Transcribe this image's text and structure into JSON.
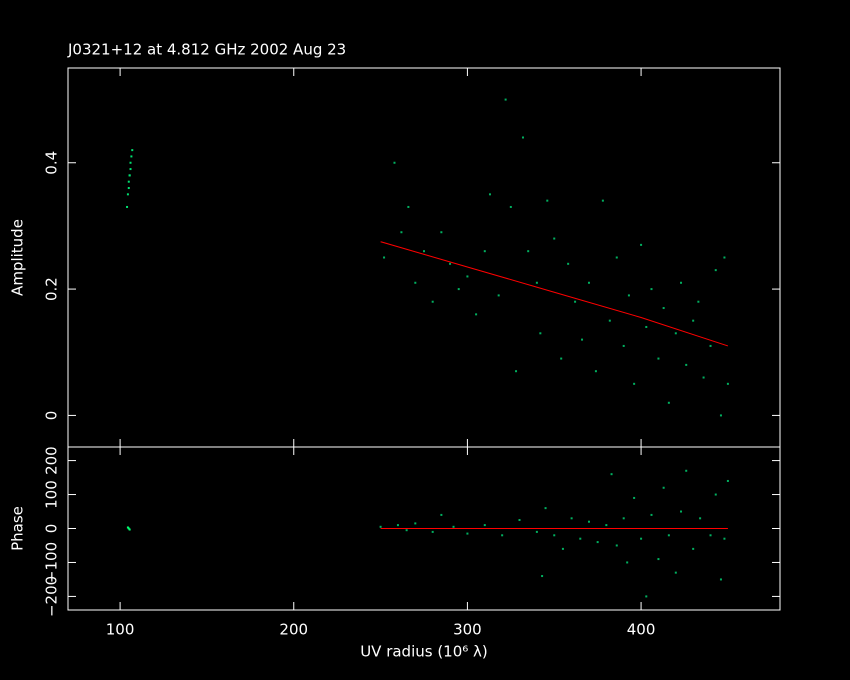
{
  "chart_data": [
    {
      "type": "scatter",
      "title": "J0321+12 at 4.812 GHz 2002 Aug 23",
      "ylabel": "Amplitude",
      "xlim": [
        70,
        480
      ],
      "ylim": [
        -0.05,
        0.55
      ],
      "yticks": [
        0,
        0.2,
        0.4
      ],
      "series": [
        {
          "color": "#00e070",
          "x": [
            104,
            104.5,
            105,
            105,
            105.5,
            105.5,
            106,
            106,
            106.5,
            107
          ],
          "values": [
            0.33,
            0.35,
            0.36,
            0.37,
            0.38,
            0.38,
            0.39,
            0.4,
            0.41,
            0.42
          ]
        },
        {
          "color": "#00b060",
          "x": [
            252,
            258,
            262,
            266,
            270,
            275,
            280,
            285,
            290,
            295,
            300,
            305,
            310,
            313,
            318,
            322,
            325,
            328,
            332,
            335,
            340,
            342,
            346,
            350,
            354,
            358,
            362,
            366,
            370,
            374,
            378,
            382,
            386,
            390,
            393,
            396,
            400,
            403,
            406,
            410,
            413,
            416,
            420,
            423,
            426,
            430,
            433,
            436,
            440,
            443,
            446,
            448,
            450
          ],
          "values": [
            0.25,
            0.4,
            0.29,
            0.33,
            0.21,
            0.26,
            0.18,
            0.29,
            0.24,
            0.2,
            0.22,
            0.16,
            0.26,
            0.35,
            0.19,
            0.5,
            0.33,
            0.07,
            0.44,
            0.26,
            0.21,
            0.13,
            0.34,
            0.28,
            0.09,
            0.24,
            0.18,
            0.12,
            0.21,
            0.07,
            0.34,
            0.15,
            0.25,
            0.11,
            0.19,
            0.05,
            0.27,
            0.14,
            0.2,
            0.09,
            0.17,
            0.02,
            0.13,
            0.21,
            0.08,
            0.15,
            0.18,
            0.06,
            0.11,
            0.23,
            0.0,
            0.25,
            0.05
          ]
        },
        {
          "color": "#ff0000",
          "line": true,
          "x": [
            250,
            300,
            350,
            400,
            450
          ],
          "values": [
            0.275,
            0.235,
            0.195,
            0.155,
            0.11
          ]
        }
      ]
    },
    {
      "type": "scatter",
      "ylabel": "Phase",
      "xlabel": "UV radius  (10⁶ λ)",
      "xlim": [
        70,
        480
      ],
      "xticks": [
        100,
        200,
        300,
        400
      ],
      "ylim": [
        -240,
        240
      ],
      "yticks": [
        200,
        100,
        0,
        {
          "value": -100,
          "label": "−100"
        },
        {
          "value": -200,
          "label": "−200"
        }
      ],
      "series": [
        {
          "color": "#00ff70",
          "x": [
            104.5,
            105,
            105.5
          ],
          "values": [
            3,
            0,
            -3
          ]
        },
        {
          "color": "#00b060",
          "x": [
            250,
            260,
            265,
            270,
            280,
            285,
            292,
            300,
            310,
            320,
            330,
            340,
            343,
            345,
            350,
            355,
            360,
            365,
            370,
            375,
            380,
            383,
            386,
            390,
            392,
            396,
            400,
            403,
            406,
            410,
            413,
            416,
            420,
            423,
            426,
            430,
            434,
            440,
            443,
            446,
            448,
            450
          ],
          "values": [
            5,
            10,
            -5,
            15,
            -10,
            40,
            5,
            -15,
            10,
            -20,
            25,
            -10,
            -140,
            60,
            -20,
            -60,
            30,
            -30,
            20,
            -40,
            10,
            160,
            -50,
            30,
            -100,
            90,
            -30,
            -200,
            40,
            -90,
            120,
            -20,
            -130,
            50,
            170,
            -60,
            30,
            -20,
            100,
            -150,
            -30,
            140
          ]
        },
        {
          "color": "#ff0000",
          "line": true,
          "x": [
            250,
            450
          ],
          "values": [
            0,
            0
          ]
        }
      ]
    }
  ]
}
